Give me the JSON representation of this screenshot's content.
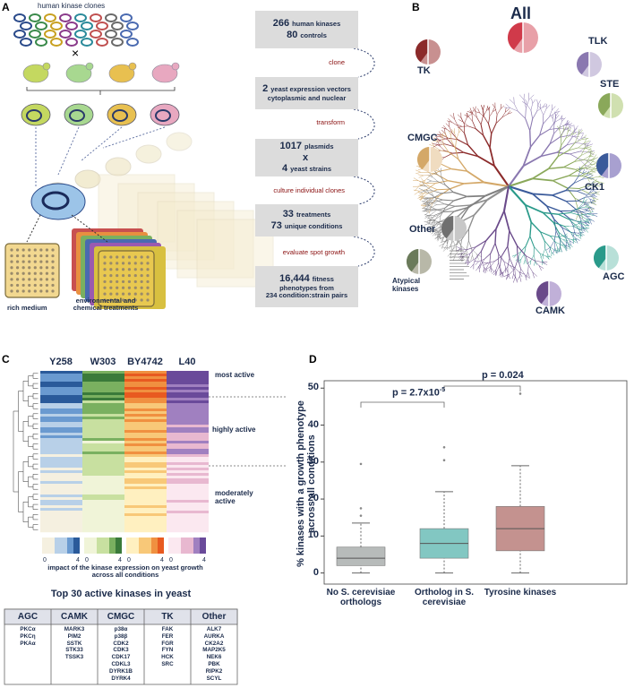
{
  "panel_a": {
    "label": "A",
    "top_caption": "human kinase clones",
    "cross": "×",
    "rich_medium": "rich medium",
    "treatments": "environmental and chemical treatments",
    "steps": [
      {
        "lines": [
          {
            "num": "266",
            "text": "human kinases"
          },
          {
            "num": "80",
            "text": "controls"
          }
        ]
      },
      {
        "lines": [
          {
            "num": "2",
            "text": "yeast expression vectors"
          },
          {
            "text": "cytoplasmic and nuclear"
          }
        ]
      },
      {
        "lines": [
          {
            "num": "1017",
            "text": "plasmids"
          },
          {
            "num": "x"
          },
          {
            "num": "4",
            "text": "yeast strains"
          }
        ]
      },
      {
        "lines": [
          {
            "num": "33",
            "text": "treatments"
          },
          {
            "num": "73",
            "text": "unique conditions"
          }
        ]
      },
      {
        "lines": [
          {
            "num": "16,444",
            "text": "fitness"
          },
          {
            "text": "phenotypes from"
          },
          {
            "text": "234 condition:strain pairs"
          }
        ]
      }
    ],
    "actions": [
      "clone",
      "transform",
      "culture individual clones",
      "evaluate spot growth"
    ]
  },
  "panel_b": {
    "label": "B",
    "groups": [
      "All",
      "TK",
      "TLK",
      "STE",
      "CMGC",
      "CK1",
      "Other",
      "Atypical kinases",
      "AGC",
      "CAMK"
    ]
  },
  "panel_c": {
    "label": "C",
    "strains": [
      "Y258",
      "W303",
      "BY4742",
      "L40"
    ],
    "levels": [
      "most active",
      "highly active",
      "moderately active"
    ],
    "colorbar_ticks": [
      "0",
      "4"
    ],
    "colorbar_caption": "impact of the kinase expression on yeast growth across all conditions",
    "table_title": "Top 30 active kinases in yeast",
    "table": [
      {
        "header": "AGC",
        "items": [
          "PKCα",
          "PKCη",
          "PKAα"
        ]
      },
      {
        "header": "CAMK",
        "items": [
          "MARK3",
          "PIM2",
          "SSTK",
          "STK33",
          "TSSK3"
        ]
      },
      {
        "header": "CMGC",
        "items": [
          "p38α",
          "p38β",
          "CDK2",
          "CDK3",
          "CDK17",
          "CDKL3",
          "DYRK1B",
          "DYRK4"
        ]
      },
      {
        "header": "TK",
        "items": [
          "FAK",
          "FER",
          "FGR",
          "FYN",
          "HCK",
          "SRC"
        ]
      },
      {
        "header": "Other",
        "items": [
          "ALK7",
          "AURKA",
          "CK2A2",
          "MAP2K5",
          "NEK6",
          "PBK",
          "RIPK2",
          "SCYL"
        ]
      }
    ]
  },
  "panel_d": {
    "label": "D"
  },
  "chart_data": {
    "type": "box",
    "ylabel": "% kinases with a growth phenotype across all conditions",
    "categories": [
      "No S. cerevisiae orthologs",
      "Ortholog in S. cerevisiae",
      "Tyrosine kinases"
    ],
    "colors": [
      "#b7bbba",
      "#82c7c2",
      "#c4928f"
    ],
    "boxes": [
      {
        "whislo": 0,
        "q1": 2,
        "med": 4,
        "q3": 7,
        "whishi": 13.5,
        "fliers": [
          15.5,
          17.5,
          29.5
        ]
      },
      {
        "whislo": 0,
        "q1": 4,
        "med": 8,
        "q3": 12,
        "whishi": 22,
        "fliers": [
          30.5,
          34
        ]
      },
      {
        "whislo": 0,
        "q1": 6,
        "med": 12,
        "q3": 18,
        "whishi": 29,
        "fliers": [
          48.5
        ]
      }
    ],
    "ylim": [
      -3,
      52
    ],
    "yticks": [
      0,
      10,
      20,
      30,
      40,
      50
    ],
    "annotations": [
      {
        "text": "p = 2.7x10",
        "superscript": "-5"
      },
      {
        "text": "p = 0.024"
      }
    ]
  }
}
